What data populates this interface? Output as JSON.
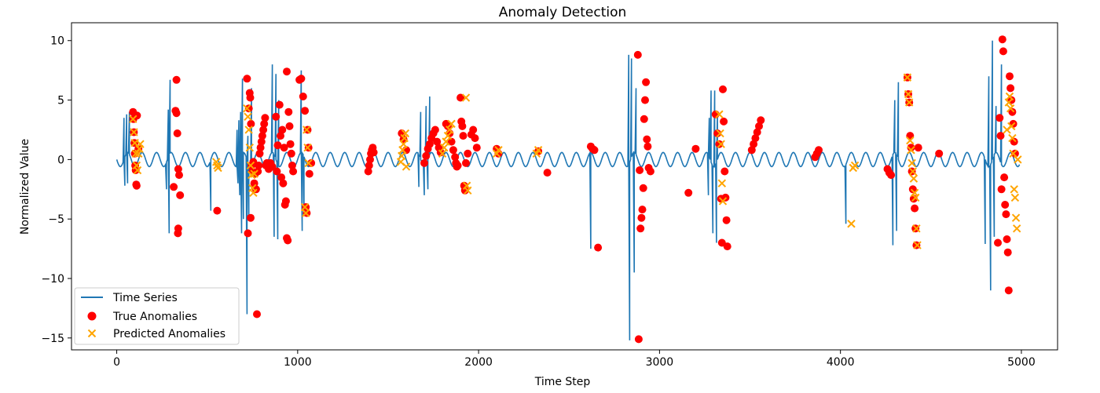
{
  "chart_data": {
    "type": "line",
    "title": "Anomaly Detection",
    "xlabel": "Time Step",
    "ylabel": "Normalized Value",
    "xlim": [
      -250,
      5200
    ],
    "ylim": [
      -16,
      11.5
    ],
    "xticks": [
      0,
      1000,
      2000,
      3000,
      4000,
      5000
    ],
    "yticks": [
      -15,
      -10,
      -5,
      0,
      5,
      10
    ],
    "grid": false,
    "legend_position": "lower-left",
    "colors": {
      "series": "#1f77b4",
      "true": "#ff0000",
      "pred": "#ffa500"
    },
    "base_signal": {
      "amplitude": 0.6,
      "period": 80
    },
    "series": [
      {
        "name": "Time Series",
        "type": "line"
      },
      {
        "name": "True Anomalies",
        "type": "scatter"
      },
      {
        "name": "Predicted Anomalies",
        "type": "scatter"
      }
    ],
    "spikes": [
      [
        40,
        3.5
      ],
      [
        45,
        -2.2
      ],
      [
        55,
        3.8
      ],
      [
        60,
        -2.0
      ],
      [
        70,
        4.0
      ],
      [
        275,
        -2.5
      ],
      [
        285,
        4.2
      ],
      [
        290,
        -6.2
      ],
      [
        295,
        6.7
      ],
      [
        520,
        -4.3
      ],
      [
        665,
        2.5
      ],
      [
        670,
        -2.0
      ],
      [
        675,
        3.3
      ],
      [
        680,
        -3.0
      ],
      [
        685,
        4.0
      ],
      [
        690,
        -6.2
      ],
      [
        695,
        6.8
      ],
      [
        700,
        -5.0
      ],
      [
        720,
        -13.0
      ],
      [
        725,
        2.0
      ],
      [
        730,
        -5.0
      ],
      [
        745,
        6.0
      ],
      [
        860,
        8.0
      ],
      [
        870,
        -6.5
      ],
      [
        880,
        7.2
      ],
      [
        890,
        -6.7
      ],
      [
        895,
        5.0
      ],
      [
        1020,
        7.5
      ],
      [
        1025,
        -6.0
      ],
      [
        1035,
        -4.0
      ],
      [
        1670,
        -2.3
      ],
      [
        1680,
        4.0
      ],
      [
        1700,
        -3.0
      ],
      [
        1710,
        4.5
      ],
      [
        1720,
        -2.5
      ],
      [
        1730,
        5.3
      ],
      [
        2620,
        -7.5
      ],
      [
        2830,
        8.8
      ],
      [
        2835,
        -15.2
      ],
      [
        2845,
        8.5
      ],
      [
        2860,
        -9.5
      ],
      [
        2870,
        6.0
      ],
      [
        3270,
        -3.0
      ],
      [
        3275,
        3.5
      ],
      [
        3285,
        5.8
      ],
      [
        3295,
        -6.2
      ],
      [
        3305,
        5.8
      ],
      [
        3315,
        -7.0
      ],
      [
        3320,
        4.0
      ],
      [
        4030,
        -5.4
      ],
      [
        4290,
        -7.2
      ],
      [
        4300,
        5.0
      ],
      [
        4310,
        -6.0
      ],
      [
        4320,
        6.5
      ],
      [
        4800,
        -7.1
      ],
      [
        4820,
        7.0
      ],
      [
        4830,
        -11.0
      ],
      [
        4840,
        10.0
      ],
      [
        4850,
        -6.5
      ],
      [
        4860,
        4.5
      ],
      [
        4890,
        8.0
      ]
    ],
    "true_anomalies": [
      [
        90,
        4.0
      ],
      [
        92,
        3.4
      ],
      [
        95,
        2.3
      ],
      [
        98,
        1.4
      ],
      [
        100,
        0.5
      ],
      [
        102,
        -0.5
      ],
      [
        105,
        -0.9
      ],
      [
        108,
        -2.1
      ],
      [
        110,
        -2.2
      ],
      [
        112,
        3.7
      ],
      [
        120,
        0.9
      ],
      [
        315,
        -2.3
      ],
      [
        325,
        4.1
      ],
      [
        330,
        3.9
      ],
      [
        335,
        2.2
      ],
      [
        340,
        -0.8
      ],
      [
        345,
        -1.3
      ],
      [
        350,
        -3.0
      ],
      [
        340,
        -5.8
      ],
      [
        338,
        -6.2
      ],
      [
        330,
        6.7
      ],
      [
        555,
        -4.3
      ],
      [
        720,
        6.8
      ],
      [
        725,
        -6.2
      ],
      [
        730,
        4.3
      ],
      [
        735,
        5.6
      ],
      [
        738,
        5.2
      ],
      [
        740,
        -4.9
      ],
      [
        742,
        3.0
      ],
      [
        745,
        -0.5
      ],
      [
        750,
        -1.0
      ],
      [
        755,
        -0.2
      ],
      [
        760,
        -2.0
      ],
      [
        765,
        -1.2
      ],
      [
        770,
        -2.5
      ],
      [
        775,
        -13.0
      ],
      [
        780,
        -1.0
      ],
      [
        785,
        -0.5
      ],
      [
        790,
        0.5
      ],
      [
        795,
        1.0
      ],
      [
        800,
        1.5
      ],
      [
        805,
        2.0
      ],
      [
        810,
        2.5
      ],
      [
        815,
        3.0
      ],
      [
        820,
        3.5
      ],
      [
        825,
        -0.5
      ],
      [
        830,
        -0.3
      ],
      [
        840,
        -0.8
      ],
      [
        850,
        -0.3
      ],
      [
        860,
        -0.6
      ],
      [
        880,
        3.6
      ],
      [
        885,
        -1.0
      ],
      [
        890,
        1.2
      ],
      [
        900,
        4.6
      ],
      [
        905,
        2.0
      ],
      [
        910,
        -1.5
      ],
      [
        915,
        2.5
      ],
      [
        920,
        -2.0
      ],
      [
        925,
        1.0
      ],
      [
        940,
        7.4
      ],
      [
        930,
        -3.8
      ],
      [
        935,
        -3.5
      ],
      [
        940,
        -6.6
      ],
      [
        945,
        -6.8
      ],
      [
        950,
        4.0
      ],
      [
        955,
        2.8
      ],
      [
        960,
        1.3
      ],
      [
        965,
        0.5
      ],
      [
        970,
        -0.5
      ],
      [
        975,
        -1.0
      ],
      [
        1010,
        6.7
      ],
      [
        1020,
        6.8
      ],
      [
        1030,
        5.3
      ],
      [
        1040,
        4.1
      ],
      [
        1045,
        -4.0
      ],
      [
        1050,
        -4.5
      ],
      [
        1055,
        2.5
      ],
      [
        1060,
        1.0
      ],
      [
        1065,
        -1.2
      ],
      [
        1075,
        -0.3
      ],
      [
        1390,
        -1.0
      ],
      [
        1395,
        -0.5
      ],
      [
        1400,
        0.0
      ],
      [
        1405,
        0.5
      ],
      [
        1410,
        0.8
      ],
      [
        1415,
        1.0
      ],
      [
        1420,
        0.6
      ],
      [
        1575,
        2.2
      ],
      [
        1585,
        1.7
      ],
      [
        1600,
        0.8
      ],
      [
        1700,
        -0.3
      ],
      [
        1710,
        0.3
      ],
      [
        1720,
        0.9
      ],
      [
        1730,
        1.3
      ],
      [
        1740,
        1.8
      ],
      [
        1750,
        2.2
      ],
      [
        1760,
        2.5
      ],
      [
        1770,
        1.5
      ],
      [
        1780,
        1.0
      ],
      [
        1790,
        0.6
      ],
      [
        1820,
        3.0
      ],
      [
        1830,
        2.8
      ],
      [
        1840,
        2.2
      ],
      [
        1850,
        1.5
      ],
      [
        1860,
        0.8
      ],
      [
        1870,
        0.2
      ],
      [
        1875,
        -0.3
      ],
      [
        1880,
        -0.6
      ],
      [
        1885,
        -0.5
      ],
      [
        1900,
        5.2
      ],
      [
        1905,
        3.2
      ],
      [
        1910,
        2.8
      ],
      [
        1915,
        2.0
      ],
      [
        1920,
        -2.2
      ],
      [
        1925,
        -2.6
      ],
      [
        1930,
        -0.3
      ],
      [
        1940,
        0.5
      ],
      [
        1960,
        2.1
      ],
      [
        1970,
        2.5
      ],
      [
        1980,
        1.8
      ],
      [
        1990,
        1.0
      ],
      [
        2100,
        0.9
      ],
      [
        2110,
        0.5
      ],
      [
        2330,
        0.7
      ],
      [
        2380,
        -1.1
      ],
      [
        2620,
        1.1
      ],
      [
        2630,
        0.9
      ],
      [
        2640,
        0.8
      ],
      [
        2660,
        -7.4
      ],
      [
        2880,
        8.8
      ],
      [
        2885,
        -15.1
      ],
      [
        2890,
        -0.9
      ],
      [
        2895,
        -5.8
      ],
      [
        2900,
        -4.9
      ],
      [
        2905,
        -4.2
      ],
      [
        2910,
        -2.4
      ],
      [
        2915,
        3.4
      ],
      [
        2920,
        5.0
      ],
      [
        2925,
        6.5
      ],
      [
        2930,
        1.7
      ],
      [
        2935,
        1.1
      ],
      [
        2940,
        -0.7
      ],
      [
        2950,
        -1.0
      ],
      [
        3160,
        -2.8
      ],
      [
        3200,
        0.9
      ],
      [
        3310,
        3.8
      ],
      [
        3320,
        2.2
      ],
      [
        3330,
        1.3
      ],
      [
        3340,
        -3.3
      ],
      [
        3345,
        -7.0
      ],
      [
        3350,
        5.9
      ],
      [
        3355,
        3.2
      ],
      [
        3360,
        -1.0
      ],
      [
        3365,
        -3.2
      ],
      [
        3370,
        -5.1
      ],
      [
        3375,
        -7.3
      ],
      [
        3510,
        0.8
      ],
      [
        3520,
        1.3
      ],
      [
        3530,
        1.8
      ],
      [
        3540,
        2.3
      ],
      [
        3550,
        2.8
      ],
      [
        3560,
        3.3
      ],
      [
        3860,
        0.2
      ],
      [
        3870,
        0.5
      ],
      [
        3880,
        0.8
      ],
      [
        4260,
        -0.8
      ],
      [
        4270,
        -1.1
      ],
      [
        4280,
        -1.3
      ],
      [
        4370,
        6.9
      ],
      [
        4375,
        5.5
      ],
      [
        4380,
        4.8
      ],
      [
        4385,
        2.0
      ],
      [
        4390,
        1.0
      ],
      [
        4395,
        -1.0
      ],
      [
        4400,
        -2.5
      ],
      [
        4405,
        -3.3
      ],
      [
        4410,
        -4.1
      ],
      [
        4415,
        -5.8
      ],
      [
        4420,
        -7.2
      ],
      [
        4430,
        1.0
      ],
      [
        4545,
        0.5
      ],
      [
        4870,
        -7.0
      ],
      [
        4880,
        3.5
      ],
      [
        4885,
        2.0
      ],
      [
        4890,
        -2.5
      ],
      [
        4895,
        10.1
      ],
      [
        4900,
        9.1
      ],
      [
        4905,
        -1.5
      ],
      [
        4910,
        -3.8
      ],
      [
        4915,
        -4.6
      ],
      [
        4920,
        -6.7
      ],
      [
        4925,
        -7.8
      ],
      [
        4930,
        -11.0
      ],
      [
        4935,
        7.0
      ],
      [
        4940,
        6.0
      ],
      [
        4945,
        5.0
      ],
      [
        4950,
        4.0
      ],
      [
        4955,
        3.0
      ],
      [
        4960,
        1.5
      ],
      [
        4965,
        0.5
      ]
    ],
    "predicted_anomalies": [
      [
        90,
        3.4
      ],
      [
        95,
        2.3
      ],
      [
        100,
        1.4
      ],
      [
        105,
        0.5
      ],
      [
        110,
        -0.5
      ],
      [
        115,
        -0.9
      ],
      [
        120,
        0.5
      ],
      [
        125,
        0.9
      ],
      [
        130,
        1.3
      ],
      [
        550,
        -0.2
      ],
      [
        555,
        -0.5
      ],
      [
        560,
        -0.7
      ],
      [
        720,
        4.3
      ],
      [
        725,
        3.6
      ],
      [
        730,
        2.5
      ],
      [
        735,
        1.0
      ],
      [
        740,
        -0.5
      ],
      [
        745,
        -1.3
      ],
      [
        750,
        -2.4
      ],
      [
        755,
        -2.8
      ],
      [
        760,
        -1.2
      ],
      [
        1040,
        -4.0
      ],
      [
        1045,
        -4.5
      ],
      [
        1050,
        2.5
      ],
      [
        1055,
        1.0
      ],
      [
        1060,
        -0.3
      ],
      [
        1570,
        -0.2
      ],
      [
        1575,
        0.3
      ],
      [
        1580,
        0.8
      ],
      [
        1585,
        1.3
      ],
      [
        1590,
        1.8
      ],
      [
        1595,
        2.2
      ],
      [
        1600,
        -0.6
      ],
      [
        1800,
        0.5
      ],
      [
        1810,
        1.0
      ],
      [
        1820,
        1.5
      ],
      [
        1830,
        2.0
      ],
      [
        1840,
        2.5
      ],
      [
        1850,
        3.0
      ],
      [
        1930,
        5.2
      ],
      [
        1935,
        -2.2
      ],
      [
        1940,
        -2.6
      ],
      [
        2100,
        0.5
      ],
      [
        2110,
        0.8
      ],
      [
        2320,
        0.5
      ],
      [
        2330,
        0.8
      ],
      [
        3330,
        3.8
      ],
      [
        3335,
        2.2
      ],
      [
        3340,
        1.3
      ],
      [
        3345,
        -2.0
      ],
      [
        3350,
        -3.5
      ],
      [
        4060,
        -5.4
      ],
      [
        4070,
        -0.7
      ],
      [
        4080,
        -0.5
      ],
      [
        4370,
        6.9
      ],
      [
        4375,
        5.5
      ],
      [
        4380,
        4.8
      ],
      [
        4385,
        1.6
      ],
      [
        4390,
        0.8
      ],
      [
        4395,
        -0.3
      ],
      [
        4400,
        -1.0
      ],
      [
        4405,
        -1.6
      ],
      [
        4410,
        -2.8
      ],
      [
        4415,
        -3.2
      ],
      [
        4420,
        -5.8
      ],
      [
        4425,
        -7.2
      ],
      [
        4920,
        2.5
      ],
      [
        4930,
        4.8
      ],
      [
        4935,
        5.3
      ],
      [
        4940,
        4.3
      ],
      [
        4945,
        2.8
      ],
      [
        4950,
        1.8
      ],
      [
        4955,
        0.5
      ],
      [
        4960,
        -2.5
      ],
      [
        4965,
        -3.2
      ],
      [
        4970,
        -4.9
      ],
      [
        4975,
        -5.8
      ],
      [
        4980,
        0.0
      ]
    ]
  }
}
